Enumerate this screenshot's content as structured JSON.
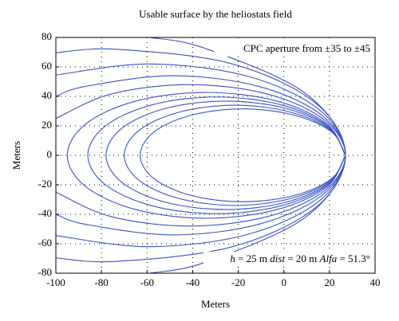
{
  "chart_data": {
    "type": "line",
    "title": "Usable surface by the heliostats field",
    "xlabel": "Meters",
    "ylabel": "Meters",
    "annotations": [
      "CPC aperture from ±35 to ±45",
      [
        "h",
        " = 25 m ",
        "dist",
        " = 20 m ",
        "Alfa",
        " = 51.3°"
      ]
    ],
    "xlim": [
      -100,
      40
    ],
    "ylim": [
      -80,
      80
    ],
    "xticks": [
      -100,
      -80,
      -60,
      -40,
      -20,
      0,
      20,
      40
    ],
    "yticks": [
      -80,
      -60,
      -40,
      -20,
      0,
      20,
      40,
      60,
      80
    ],
    "grid": true,
    "color": "#3a53c9",
    "series": [
      {
        "x": [
          27,
          21,
          4.5,
          -18,
          -40.5,
          -57,
          -63,
          -57,
          -40.5,
          -18,
          4.5,
          21,
          27
        ],
        "values": [
          0,
          15.8,
          27.3,
          31.5,
          27.3,
          15.8,
          0,
          -15.8,
          -27.3,
          -31.5,
          -27.3,
          -15.8,
          0
        ]
      },
      {
        "x": [
          27,
          20.5,
          2.75,
          -21.5,
          -45.75,
          -63.5,
          -70,
          -63.5,
          -45.75,
          -21.5,
          2.75,
          20.5,
          27
        ],
        "values": [
          0,
          17,
          29.4,
          34,
          29.4,
          17,
          0,
          -17,
          -29.4,
          -34,
          -29.4,
          -17,
          0
        ]
      },
      {
        "x": [
          27,
          20,
          0.75,
          -25.5,
          -51.75,
          -71,
          -78,
          -71,
          -51.75,
          -25.5,
          0.75,
          20,
          27
        ],
        "values": [
          0,
          18.4,
          31.9,
          36.8,
          31.9,
          18.4,
          0,
          -18.4,
          -31.9,
          -36.8,
          -31.9,
          -18.4,
          0
        ]
      },
      {
        "x": [
          27,
          19.4,
          -1.25,
          -29.5,
          -57.75,
          -78.4,
          -86,
          -78.4,
          -57.75,
          -29.5,
          -1.25,
          19.4,
          27
        ],
        "values": [
          0,
          19.8,
          34.3,
          39.6,
          34.3,
          19.8,
          0,
          -19.8,
          -34.3,
          -39.6,
          -34.3,
          -19.8,
          0
        ]
      },
      {
        "x": [
          27,
          18.8,
          -3.5,
          -34,
          -64.5,
          -86.8,
          -95,
          -86.8,
          -64.5,
          -34,
          -3.5,
          18.8,
          27
        ],
        "values": [
          0,
          21.4,
          37,
          42.7,
          37,
          21.4,
          0,
          -21.4,
          -37,
          -42.7,
          -37,
          -21.4,
          0
        ]
      },
      {
        "x": [
          -100,
          -75.75,
          -41.5,
          -7.25,
          17.8,
          27,
          17.8,
          -7.25,
          -41.5,
          -75.75,
          -100
        ],
        "values": [
          25,
          41.6,
          48,
          41.6,
          24,
          0,
          -24,
          -41.6,
          -48,
          -41.6,
          -25
        ]
      },
      {
        "x": [
          -100,
          -87,
          -49,
          -11,
          16.8,
          27,
          16.8,
          -11,
          -49,
          -87,
          -100
        ],
        "values": [
          40,
          46.8,
          54,
          46.8,
          27,
          0,
          -27,
          -46.8,
          -54,
          -46.8,
          -40
        ]
      },
      {
        "x": [
          -100,
          -59,
          -16,
          15.5,
          27,
          15.5,
          -16,
          -59,
          -100
        ],
        "values": [
          54.5,
          62,
          53.7,
          31,
          0,
          -31,
          -53.7,
          -62,
          -54.5
        ]
      },
      {
        "x": [
          -100,
          -74,
          -23.5,
          13.5,
          27,
          13.5,
          -23.5,
          -74,
          -100
        ],
        "values": [
          69.6,
          72,
          62.4,
          36,
          0,
          -36,
          -62.4,
          -72,
          -69.6
        ]
      },
      {
        "x": [
          -58.8,
          -34.75,
          9.5,
          27,
          9.5,
          -34.75,
          -58.8
        ],
        "values": [
          80,
          72.7,
          42,
          0,
          -42,
          -72.7,
          -80
        ]
      }
    ]
  }
}
